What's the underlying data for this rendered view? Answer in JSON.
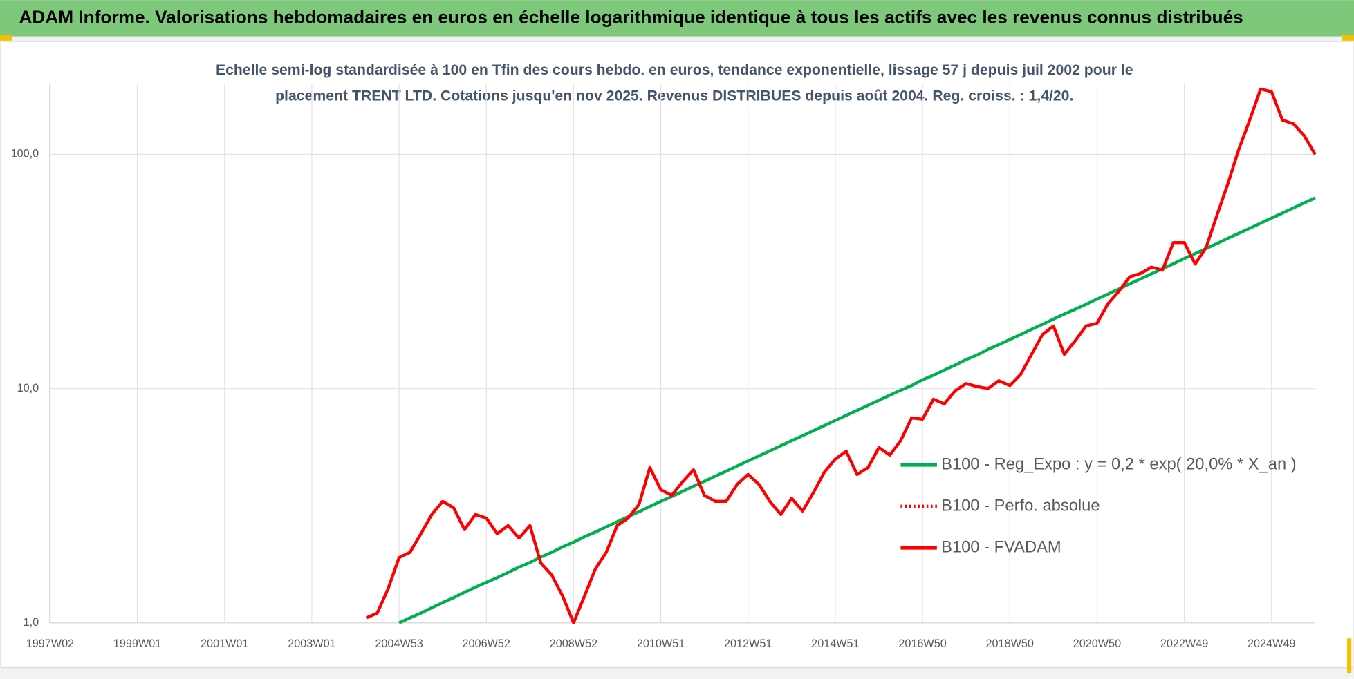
{
  "header": {
    "title": "ADAM Informe. Valorisations hebdomadaires en euros en échelle logarithmique identique à tous les actifs avec les revenus connus distribués"
  },
  "chart_data": {
    "type": "line",
    "title": [
      "Echelle semi-log standardisée à 100 en Tfin des cours hebdo. en euros, tendance exponentielle, lissage 57 j depuis juil 2002 pour le",
      "placement TRENT LTD. Cotations jusqu'en nov 2025. Revenus DISTRIBUES depuis août 2004. Reg. croiss. : 1,4/20."
    ],
    "log_scale": true,
    "grid": true,
    "ylim": [
      1,
      200
    ],
    "yticks": [
      {
        "value": 1,
        "label": "1,0"
      },
      {
        "value": 10,
        "label": "10,0"
      },
      {
        "value": 100,
        "label": "100,0"
      }
    ],
    "categories": [
      "1997W02",
      null,
      null,
      null,
      null,
      null,
      null,
      null,
      "1999W01",
      null,
      null,
      null,
      null,
      null,
      null,
      null,
      "2001W01",
      null,
      null,
      null,
      null,
      null,
      null,
      null,
      "2003W01",
      null,
      null,
      null,
      null,
      null,
      null,
      null,
      "2004W53",
      null,
      null,
      null,
      null,
      null,
      null,
      null,
      "2006W52",
      null,
      null,
      null,
      null,
      null,
      null,
      null,
      "2008W52",
      null,
      null,
      null,
      null,
      null,
      null,
      null,
      "2010W51",
      null,
      null,
      null,
      null,
      null,
      null,
      null,
      "2012W51",
      null,
      null,
      null,
      null,
      null,
      null,
      null,
      "2014W51",
      null,
      null,
      null,
      null,
      null,
      null,
      null,
      "2016W50",
      null,
      null,
      null,
      null,
      null,
      null,
      null,
      "2018W50",
      null,
      null,
      null,
      null,
      null,
      null,
      null,
      "2020W50",
      null,
      null,
      null,
      null,
      null,
      null,
      null,
      "2022W49",
      null,
      null,
      null,
      null,
      null,
      null,
      null,
      "2024W49",
      null,
      null,
      null,
      null
    ],
    "series": [
      {
        "name": "B100 - Reg_Expo : y = 0,2 * exp( 20,0% *  X_an )",
        "color": "#00b050",
        "dash": "solid",
        "values": [
          null,
          null,
          null,
          null,
          null,
          null,
          null,
          null,
          null,
          null,
          null,
          null,
          null,
          null,
          null,
          null,
          null,
          null,
          null,
          null,
          null,
          null,
          null,
          null,
          null,
          null,
          null,
          null,
          null,
          null,
          null,
          null,
          1.0,
          1.05,
          1.1,
          1.16,
          1.22,
          1.28,
          1.35,
          1.42,
          1.49,
          1.56,
          1.64,
          1.73,
          1.81,
          1.91,
          2.0,
          2.11,
          2.21,
          2.33,
          2.44,
          2.57,
          2.7,
          2.84,
          2.98,
          3.14,
          3.3,
          3.46,
          3.64,
          3.83,
          4.02,
          4.23,
          4.44,
          4.67,
          4.91,
          5.16,
          5.42,
          5.7,
          5.99,
          6.29,
          6.61,
          6.95,
          7.31,
          7.68,
          8.07,
          8.48,
          8.91,
          9.37,
          9.84,
          10.3,
          10.9,
          11.4,
          12.0,
          12.6,
          13.3,
          13.9,
          14.7,
          15.4,
          16.2,
          17.0,
          17.9,
          18.8,
          19.8,
          20.8,
          21.8,
          22.9,
          24.1,
          25.3,
          26.6,
          28.0,
          29.4,
          30.9,
          32.5,
          34.1,
          35.9,
          37.7,
          39.6,
          41.6,
          43.8,
          46.0,
          48.3,
          50.8,
          53.4,
          56.1,
          59.0,
          62.0,
          65.1
        ]
      },
      {
        "name": "B100 - Perfo. absolue",
        "color": "#ff0000",
        "dash": "dotted",
        "values": [
          null,
          null,
          null,
          null,
          null,
          null,
          null,
          null,
          null,
          null,
          null,
          null,
          null,
          null,
          null,
          null,
          null,
          null,
          null,
          null,
          null,
          null,
          null,
          null,
          null,
          null,
          null,
          null,
          null,
          null,
          null,
          null,
          null,
          null,
          null,
          null,
          null,
          null,
          null,
          null,
          null,
          null,
          null,
          null,
          null,
          null,
          null,
          null,
          null,
          null,
          null,
          null,
          null,
          null,
          null,
          null,
          null,
          null,
          null,
          null,
          null,
          null,
          null,
          null,
          null,
          null,
          null,
          null,
          null,
          null,
          null,
          null,
          null,
          null,
          null,
          null,
          null,
          null,
          null,
          null,
          null,
          null,
          null,
          null,
          null,
          null,
          null,
          null,
          null,
          null,
          null,
          null,
          null,
          null,
          null,
          null,
          null,
          null,
          null,
          null,
          null,
          null,
          null,
          null,
          null,
          null,
          null,
          null,
          null,
          null,
          null,
          null,
          null,
          null,
          null,
          null,
          null
        ]
      },
      {
        "name": "B100 - FVADAM",
        "color": "#ff0000",
        "dash": "solid",
        "values": [
          null,
          null,
          null,
          null,
          null,
          null,
          null,
          null,
          null,
          null,
          null,
          null,
          null,
          null,
          null,
          null,
          null,
          null,
          null,
          null,
          null,
          null,
          null,
          null,
          null,
          null,
          null,
          null,
          null,
          1.05,
          1.1,
          1.4,
          1.9,
          2.0,
          2.4,
          2.9,
          3.3,
          3.1,
          2.5,
          2.9,
          2.8,
          2.4,
          2.6,
          2.3,
          2.6,
          1.8,
          1.6,
          1.3,
          1.0,
          1.3,
          1.7,
          2.0,
          2.6,
          2.8,
          3.2,
          4.6,
          3.7,
          3.5,
          4.0,
          4.5,
          3.5,
          3.3,
          3.3,
          3.9,
          4.3,
          3.9,
          3.3,
          2.9,
          3.4,
          3.0,
          3.6,
          4.4,
          5.0,
          5.4,
          4.3,
          4.6,
          5.6,
          5.2,
          6.0,
          7.5,
          7.4,
          9.0,
          8.6,
          9.8,
          10.5,
          10.2,
          10.0,
          10.8,
          10.3,
          11.5,
          14.0,
          17.0,
          18.5,
          14.0,
          16.0,
          18.5,
          19.0,
          23.0,
          26.0,
          30.0,
          31.0,
          33.0,
          32.0,
          42.0,
          42.0,
          34.0,
          40.0,
          55.0,
          75.0,
          105,
          140,
          190,
          185,
          140,
          135,
          120,
          100
        ]
      }
    ]
  }
}
